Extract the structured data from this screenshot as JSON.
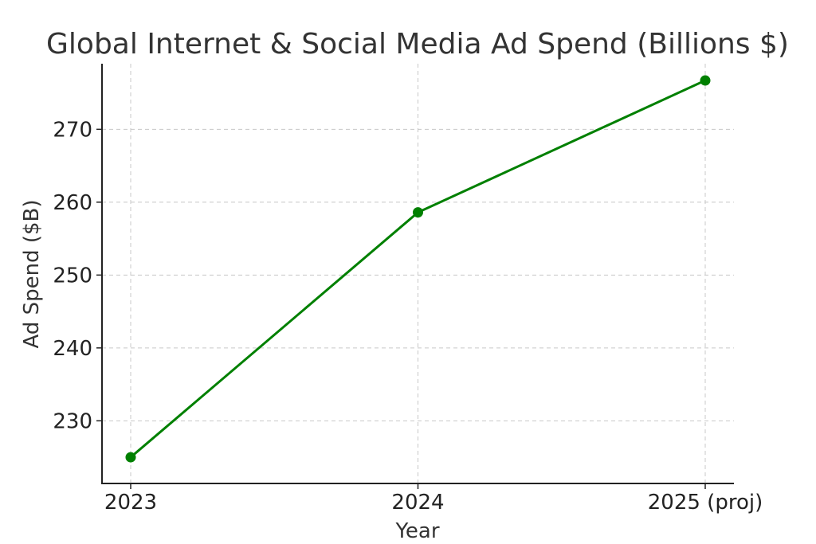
{
  "chart_data": {
    "type": "line",
    "title": "Global Internet & Social Media Ad Spend (Billions $)",
    "xlabel": "Year",
    "ylabel": "Ad Spend ($B)",
    "categories": [
      "2023",
      "2024",
      "2025 (proj)"
    ],
    "series": [
      {
        "values": [
          225.0,
          258.6,
          276.7
        ],
        "color": "#008000"
      }
    ],
    "y_ticks": [
      230,
      240,
      250,
      260,
      270
    ],
    "ylim": [
      221.4,
      279.0
    ],
    "grid": true,
    "marker": "circle"
  }
}
